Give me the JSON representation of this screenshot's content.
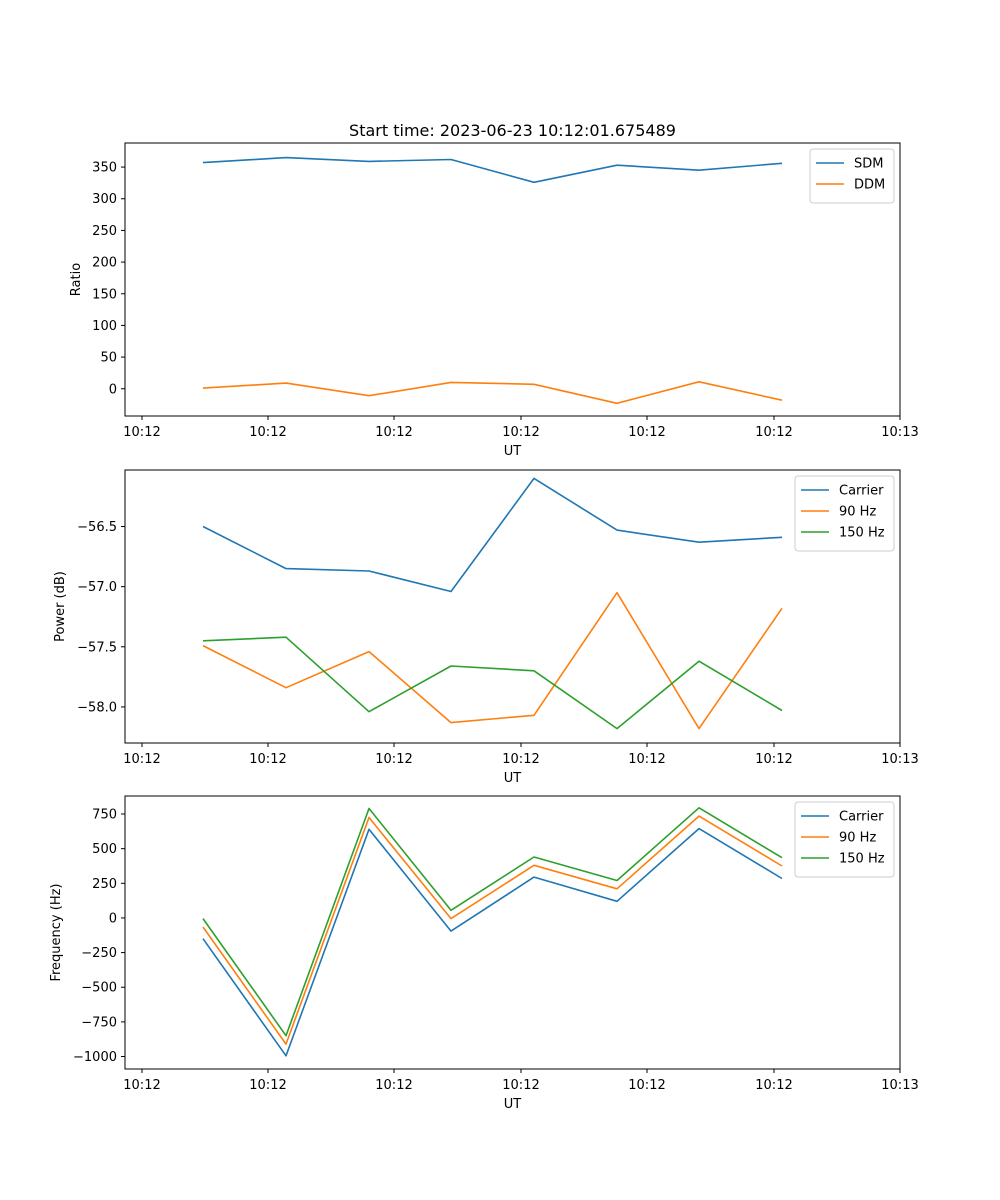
{
  "chart_data": [
    {
      "type": "line",
      "title": "Start time: 2023-06-23 10:12:01.675489",
      "xlabel": "UT",
      "ylabel": "Ratio",
      "x_tick_labels": [
        "10:12",
        "10:12",
        "10:12",
        "10:12",
        "10:12",
        "10:12",
        "10:12",
        "10:13"
      ],
      "y_ticks": [
        0,
        50,
        100,
        150,
        200,
        250,
        300,
        350
      ],
      "ylim": [
        -43,
        388
      ],
      "grid": false,
      "legend_position": "upper right",
      "series": [
        {
          "name": "SDM",
          "color": "#1f77b4",
          "values": [
            357,
            365,
            359,
            362,
            326,
            353,
            345,
            356
          ]
        },
        {
          "name": "DDM",
          "color": "#ff7f0e",
          "values": [
            1,
            9,
            -11,
            10,
            7,
            -23,
            11,
            -18
          ]
        }
      ]
    },
    {
      "type": "line",
      "title": "",
      "xlabel": "UT",
      "ylabel": "Power (dB)",
      "x_tick_labels": [
        "10:12",
        "10:12",
        "10:12",
        "10:12",
        "10:12",
        "10:12",
        "10:12",
        "10:13"
      ],
      "y_ticks": [
        -56.5,
        -57.0,
        -57.5,
        -58.0
      ],
      "y_tick_labels": [
        "−56.5",
        "−57.0",
        "−57.5",
        "−58.0"
      ],
      "ylim": [
        -58.3,
        -56.03
      ],
      "grid": false,
      "legend_position": "upper right",
      "series": [
        {
          "name": "Carrier",
          "color": "#1f77b4",
          "values": [
            -56.5,
            -56.85,
            -56.87,
            -57.04,
            -56.1,
            -56.53,
            -56.63,
            -56.59
          ]
        },
        {
          "name": "90 Hz",
          "color": "#ff7f0e",
          "values": [
            -57.49,
            -57.84,
            -57.54,
            -58.13,
            -58.07,
            -57.05,
            -58.18,
            -57.18
          ]
        },
        {
          "name": "150 Hz",
          "color": "#2ca02c",
          "values": [
            -57.45,
            -57.42,
            -58.04,
            -57.66,
            -57.7,
            -58.18,
            -57.62,
            -58.03
          ]
        }
      ]
    },
    {
      "type": "line",
      "title": "",
      "xlabel": "UT",
      "ylabel": "Frequency (Hz)",
      "x_tick_labels": [
        "10:12",
        "10:12",
        "10:12",
        "10:12",
        "10:12",
        "10:12",
        "10:12",
        "10:13"
      ],
      "y_ticks": [
        750,
        500,
        250,
        0,
        -250,
        -500,
        -750,
        -1000
      ],
      "y_tick_labels": [
        "750",
        "500",
        "250",
        "0",
        "−250",
        "−500",
        "−750",
        "−1000"
      ],
      "ylim": [
        -1090,
        880
      ],
      "grid": false,
      "legend_position": "upper right",
      "series": [
        {
          "name": "Carrier",
          "color": "#1f77b4",
          "values": [
            -150,
            -995,
            640,
            -95,
            295,
            120,
            645,
            285
          ]
        },
        {
          "name": "90 Hz",
          "color": "#ff7f0e",
          "values": [
            -65,
            -910,
            725,
            -5,
            380,
            210,
            735,
            375
          ]
        },
        {
          "name": "150 Hz",
          "color": "#2ca02c",
          "values": [
            -5,
            -850,
            790,
            55,
            440,
            270,
            795,
            435
          ]
        }
      ]
    }
  ]
}
